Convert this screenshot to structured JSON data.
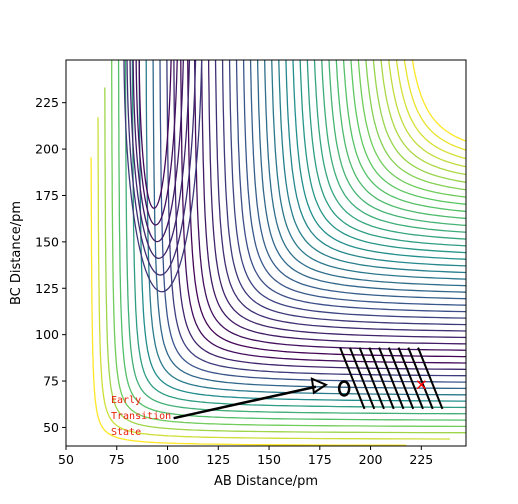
{
  "chart_data": {
    "type": "contour",
    "xlabel": "AB Distance/pm",
    "ylabel": "BC Distance/pm",
    "xlim": [
      50,
      247
    ],
    "ylim": [
      40,
      248
    ],
    "xticks": [
      50,
      75,
      100,
      125,
      150,
      175,
      200,
      225
    ],
    "yticks": [
      50,
      75,
      100,
      125,
      150,
      175,
      200,
      225
    ],
    "annotation": {
      "lines": [
        "Early",
        "Transition",
        "State"
      ],
      "color": "#e8220a"
    },
    "arrow": {
      "x": [
        103,
        178
      ],
      "y": [
        55,
        73
      ],
      "color": "#000000"
    },
    "marker": {
      "x": 225,
      "y": 73,
      "color": "#ff0000"
    }
  }
}
